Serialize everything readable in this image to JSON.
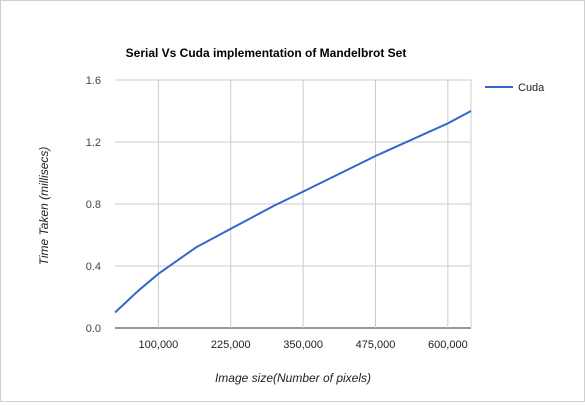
{
  "chart_data": {
    "type": "line",
    "title": "Serial Vs Cuda implementation of Mandelbrot Set",
    "xlabel": "Image size(Number of pixels)",
    "ylabel": "Time Taken (millisecs)",
    "xlim": [
      25000,
      640000
    ],
    "ylim": [
      0,
      1.6
    ],
    "x_ticks": [
      100000,
      225000,
      350000,
      475000,
      600000
    ],
    "x_tick_labels": [
      "100,000",
      "225,000",
      "350,000",
      "475,000",
      "600,000"
    ],
    "y_ticks": [
      0,
      0.4,
      0.8,
      1.2,
      1.6
    ],
    "y_tick_labels": [
      "0.0",
      "0.4",
      "0.8",
      "1.2",
      "1.6"
    ],
    "grid": true,
    "legend_position": "right",
    "series": [
      {
        "name": "Cuda",
        "color": "#3366cc",
        "x": [
          25000,
          65000,
          100000,
          165000,
          225000,
          300000,
          350000,
          475000,
          600000,
          640000
        ],
        "y": [
          0.1,
          0.24,
          0.35,
          0.52,
          0.64,
          0.79,
          0.88,
          1.11,
          1.32,
          1.4
        ]
      }
    ]
  }
}
